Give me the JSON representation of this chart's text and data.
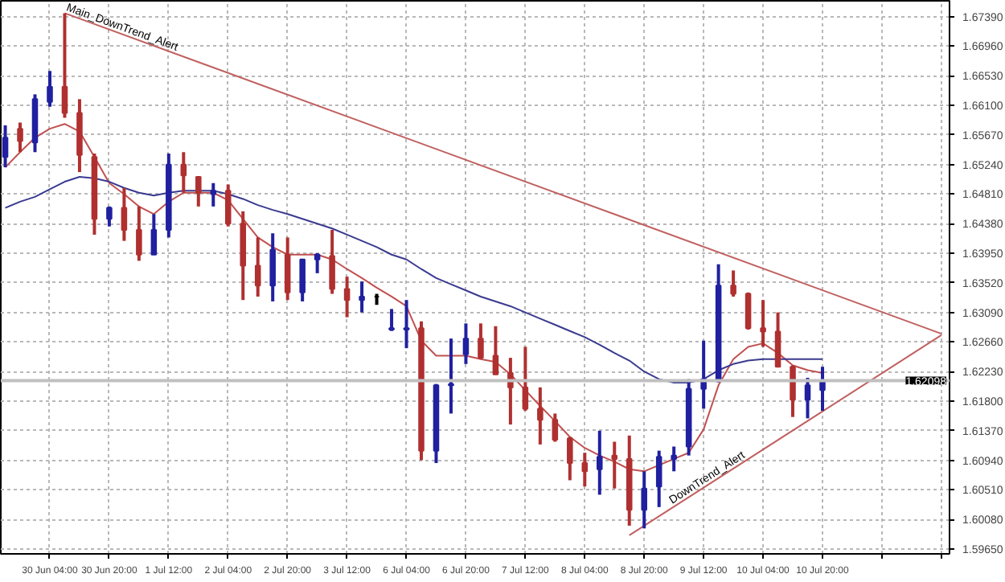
{
  "chart_data": {
    "type": "candlestick",
    "categories": [
      null,
      null,
      null,
      "30 Jun 04:00",
      null,
      null,
      null,
      "30 Jun 20:00",
      null,
      null,
      null,
      "1 Jul 12:00",
      null,
      null,
      null,
      "2 Jul 04:00",
      null,
      null,
      null,
      "2 Jul 20:00",
      null,
      null,
      null,
      "3 Jul 12:00",
      null,
      null,
      null,
      "6 Jul 04:00",
      null,
      null,
      null,
      "6 Jul 20:00",
      null,
      null,
      null,
      "7 Jul 12:00",
      null,
      null,
      null,
      "8 Jul 04:00",
      null,
      null,
      null,
      "8 Jul 20:00",
      null,
      null,
      null,
      "9 Jul 12:00",
      null,
      null,
      null,
      "10 Jul 04:00",
      null,
      null,
      null,
      "10 Jul 20:00",
      null,
      null,
      null,
      null,
      null,
      null,
      null,
      null
    ],
    "ohlc": [
      [
        1.6535,
        1.6581,
        1.652,
        1.6563
      ],
      [
        1.6576,
        1.6585,
        1.6542,
        1.6558
      ],
      [
        1.6556,
        1.6626,
        1.6542,
        1.6619
      ],
      [
        1.6615,
        1.666,
        1.6608,
        1.6637
      ],
      [
        1.6637,
        1.6744,
        1.6592,
        1.6599
      ],
      [
        1.6599,
        1.6619,
        1.6513,
        1.6538
      ],
      [
        1.6535,
        1.654,
        1.6422,
        1.6445
      ],
      [
        1.6445,
        1.6463,
        1.6434,
        1.6461
      ],
      [
        1.6461,
        1.649,
        1.6413,
        1.6429
      ],
      [
        1.6429,
        1.6463,
        1.6384,
        1.6393
      ],
      [
        1.6393,
        1.6452,
        1.6393,
        1.6429
      ],
      [
        1.6429,
        1.654,
        1.6418,
        1.6524
      ],
      [
        1.6524,
        1.6542,
        1.6483,
        1.6508
      ],
      [
        1.6506,
        1.6506,
        1.6463,
        1.6483
      ],
      [
        1.6481,
        1.6497,
        1.6463,
        1.6486
      ],
      [
        1.6486,
        1.6495,
        1.6434,
        1.6438
      ],
      [
        1.6438,
        1.6456,
        1.6327,
        1.6377
      ],
      [
        1.6377,
        1.6418,
        1.6332,
        1.6348
      ],
      [
        1.6348,
        1.6424,
        1.6325,
        1.64
      ],
      [
        1.6393,
        1.6418,
        1.6327,
        1.6338
      ],
      [
        1.6338,
        1.6386,
        1.6325,
        1.6386
      ],
      [
        1.6386,
        1.6395,
        1.6366,
        1.6393
      ],
      [
        1.6391,
        1.6429,
        1.6336,
        1.6343
      ],
      [
        1.6343,
        1.6361,
        1.6302,
        1.6327
      ],
      [
        1.6327,
        1.6354,
        1.6309,
        1.6332
      ],
      [
        1.6332,
        1.6336,
        1.632,
        1.6332
      ],
      [
        1.6284,
        1.6314,
        1.6282,
        1.6286
      ],
      [
        1.6284,
        1.6327,
        1.6257,
        1.6286
      ],
      [
        1.6286,
        1.6296,
        1.6094,
        1.6108
      ],
      [
        1.6108,
        1.6205,
        1.609,
        1.6203
      ],
      [
        1.6203,
        1.6271,
        1.6162,
        1.6205
      ],
      [
        1.6248,
        1.6293,
        1.6234,
        1.6271
      ],
      [
        1.6271,
        1.6293,
        1.6241,
        1.6243
      ],
      [
        1.6246,
        1.6289,
        1.6219,
        1.6219
      ],
      [
        1.6221,
        1.6243,
        1.6146,
        1.62
      ],
      [
        1.62,
        1.6259,
        1.6166,
        1.6169
      ],
      [
        1.6169,
        1.62,
        1.6117,
        1.6153
      ],
      [
        1.6153,
        1.6162,
        1.6121,
        1.6124
      ],
      [
        1.6126,
        1.6128,
        1.6065,
        1.609
      ],
      [
        1.609,
        1.6105,
        1.6056,
        1.6078
      ],
      [
        1.6081,
        1.6137,
        1.6044,
        1.6099
      ],
      [
        1.6101,
        1.6121,
        1.6053,
        1.6096
      ],
      [
        1.6096,
        1.613,
        1.5999,
        1.6022
      ],
      [
        1.6022,
        1.6078,
        1.5995,
        1.6053
      ],
      [
        1.6056,
        1.6108,
        1.6026,
        1.6099
      ],
      [
        1.6096,
        1.6114,
        1.6078,
        1.6101
      ],
      [
        1.6114,
        1.6212,
        1.6101,
        1.6198
      ],
      [
        1.6198,
        1.6268,
        1.6169,
        1.6212
      ],
      [
        1.6212,
        1.6379,
        1.6207,
        1.6348
      ],
      [
        1.6348,
        1.637,
        1.6332,
        1.6336
      ],
      [
        1.6336,
        1.6338,
        1.6284,
        1.6286
      ],
      [
        1.6286,
        1.6327,
        1.6259,
        1.6281
      ],
      [
        1.6281,
        1.6309,
        1.623,
        1.623
      ],
      [
        1.623,
        1.6232,
        1.6157,
        1.6182
      ],
      [
        1.6182,
        1.6214,
        1.6155,
        1.6203
      ],
      [
        1.6196,
        1.623,
        1.6166,
        1.62098
      ],
      null,
      null,
      null,
      null,
      null,
      null,
      null,
      null
    ],
    "colors": [
      "#2020a0",
      "#b03030",
      "#2020a0",
      "#2020a0",
      "#b03030",
      "#b03030",
      "#b03030",
      "#2020a0",
      "#b03030",
      "#b03030",
      "#2020a0",
      "#2020a0",
      "#b03030",
      "#b03030",
      "#2020a0",
      "#b03030",
      "#b03030",
      "#b03030",
      "#2020a0",
      "#b03030",
      "#2020a0",
      "#2020a0",
      "#b03030",
      "#b03030",
      "#2020a0",
      "#000000",
      "#2020a0",
      "#2020a0",
      "#b03030",
      "#2020a0",
      "#2020a0",
      "#2020a0",
      "#b03030",
      "#b03030",
      "#b03030",
      "#b03030",
      "#b03030",
      "#b03030",
      "#b03030",
      "#b03030",
      "#2020a0",
      "#b03030",
      "#b03030",
      "#2020a0",
      "#2020a0",
      "#2020a0",
      "#2020a0",
      "#2020a0",
      "#2020a0",
      "#b03030",
      "#b03030",
      "#b03030",
      "#b03030",
      "#b03030",
      "#2020a0",
      "#2020a0",
      null,
      null,
      null,
      null,
      null,
      null,
      null,
      null
    ],
    "series": [
      {
        "type": "line",
        "color": "#c05050",
        "values": [
          1.652,
          1.6542,
          1.6563,
          1.6576,
          1.6583,
          1.6572,
          1.6535,
          1.6497,
          1.6481,
          1.6463,
          1.6452,
          1.647,
          1.6483,
          1.6483,
          1.6483,
          1.6472,
          1.6445,
          1.6418,
          1.6404,
          1.6393,
          1.6393,
          1.6393,
          1.6386,
          1.6372,
          1.6359,
          1.6345,
          1.6332,
          1.6318,
          1.6268,
          1.6246,
          1.6246,
          1.6246,
          1.6241,
          1.6237,
          1.6219,
          1.6196,
          1.6173,
          1.6151,
          1.6128,
          1.6112,
          1.6101,
          1.6092,
          1.6081,
          1.6078,
          1.6087,
          1.6096,
          1.6105,
          1.6139,
          1.6203,
          1.6241,
          1.6259,
          1.6264,
          1.625,
          1.6232,
          1.6225,
          1.6221,
          null,
          null,
          null,
          null,
          null,
          null,
          null,
          null
        ]
      },
      {
        "type": "line",
        "color": "#3a3a90",
        "values": [
          1.6461,
          1.647,
          1.6477,
          1.6488,
          1.6499,
          1.6506,
          1.6504,
          1.6499,
          1.649,
          1.6483,
          1.6479,
          1.6483,
          1.6486,
          1.6486,
          1.6486,
          1.6481,
          1.6474,
          1.6465,
          1.6458,
          1.6452,
          1.6445,
          1.6438,
          1.6431,
          1.6422,
          1.6413,
          1.6404,
          1.6393,
          1.6386,
          1.6372,
          1.6359,
          1.635,
          1.6341,
          1.6332,
          1.6325,
          1.6318,
          1.6309,
          1.63,
          1.6291,
          1.6282,
          1.6273,
          1.6262,
          1.625,
          1.6239,
          1.6223,
          1.6212,
          1.6207,
          1.6207,
          1.6212,
          1.6225,
          1.6234,
          1.6239,
          1.6241,
          1.6241,
          1.6241,
          1.6241,
          1.6241,
          null,
          null,
          null,
          null,
          null,
          null,
          null,
          null
        ]
      },
      {
        "type": "line",
        "name": "Main_DownTrend_Alert",
        "color": "#c06060",
        "values": [
          null,
          null,
          null,
          null,
          1.6744,
          null,
          null,
          null,
          null,
          null,
          null,
          null,
          null,
          null,
          null,
          null,
          null,
          null,
          null,
          null,
          null,
          null,
          null,
          null,
          null,
          null,
          null,
          null,
          null,
          null,
          null,
          null,
          null,
          null,
          null,
          null,
          null,
          null,
          null,
          null,
          null,
          null,
          null,
          null,
          null,
          null,
          null,
          null,
          null,
          null,
          null,
          null,
          null,
          null,
          null,
          null,
          null,
          null,
          null,
          null,
          null,
          null,
          null,
          1.6278
        ]
      },
      {
        "type": "line",
        "name": "DownTrend_Alert",
        "color": "#c06060",
        "values": [
          null,
          null,
          null,
          null,
          null,
          null,
          null,
          null,
          null,
          null,
          null,
          null,
          null,
          null,
          null,
          null,
          null,
          null,
          null,
          null,
          null,
          null,
          null,
          null,
          null,
          null,
          null,
          null,
          null,
          null,
          null,
          null,
          null,
          null,
          null,
          null,
          null,
          null,
          null,
          null,
          null,
          null,
          1.5985,
          null,
          null,
          null,
          null,
          null,
          null,
          null,
          null,
          null,
          null,
          null,
          null,
          null,
          null,
          null,
          null,
          null,
          null,
          null,
          null,
          1.6276
        ]
      }
    ],
    "ylim": [
      1.5958,
      1.6762
    ],
    "yticks": [
      {
        "value": 1.6739,
        "label": "1.67390"
      },
      {
        "value": 1.6696,
        "label": "1.66960"
      },
      {
        "value": 1.6653,
        "label": "1.66530"
      },
      {
        "value": 1.661,
        "label": "1.66100"
      },
      {
        "value": 1.6567,
        "label": "1.65670"
      },
      {
        "value": 1.6524,
        "label": "1.65240"
      },
      {
        "value": 1.6481,
        "label": "1.64810"
      },
      {
        "value": 1.6438,
        "label": "1.64380"
      },
      {
        "value": 1.6395,
        "label": "1.63950"
      },
      {
        "value": 1.6352,
        "label": "1.63520"
      },
      {
        "value": 1.6309,
        "label": "1.63090"
      },
      {
        "value": 1.6266,
        "label": "1.62660"
      },
      {
        "value": 1.6223,
        "label": "1.62230"
      },
      {
        "value": 1.618,
        "label": "1.61800"
      },
      {
        "value": 1.6137,
        "label": "1.61370"
      },
      {
        "value": 1.6094,
        "label": "1.60940"
      },
      {
        "value": 1.6051,
        "label": "1.60510"
      },
      {
        "value": 1.6008,
        "label": "1.60080"
      },
      {
        "value": 1.5965,
        "label": "1.59650"
      }
    ],
    "grid": true,
    "ref_lines": [
      {
        "axis": "y",
        "value": 1.62098,
        "label": "1.62098",
        "color": "#c0c0c0"
      }
    ]
  }
}
